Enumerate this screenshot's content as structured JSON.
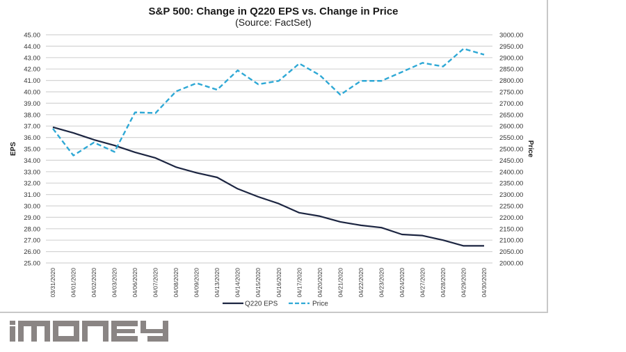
{
  "chart_data": {
    "type": "line",
    "title": "S&P 500: Change in Q220 EPS vs. Change in Price",
    "subtitle": "(Source: FactSet)",
    "xlabel": "",
    "ylabel": "EPS",
    "y2label": "Price",
    "ylim": [
      25,
      45
    ],
    "y2lim": [
      2000,
      3000
    ],
    "yticks": [
      "45.00",
      "44.00",
      "43.00",
      "42.00",
      "41.00",
      "40.00",
      "39.00",
      "38.00",
      "37.00",
      "36.00",
      "35.00",
      "34.00",
      "33.00",
      "32.00",
      "31.00",
      "30.00",
      "29.00",
      "28.00",
      "27.00",
      "26.00",
      "25.00"
    ],
    "y2ticks": [
      "3000.00",
      "2950.00",
      "2900.00",
      "2850.00",
      "2800.00",
      "2750.00",
      "2700.00",
      "2650.00",
      "2600.00",
      "2550.00",
      "2500.00",
      "2450.00",
      "2400.00",
      "2350.00",
      "2300.00",
      "2250.00",
      "2200.00",
      "2150.00",
      "2100.00",
      "2050.00",
      "2000.00"
    ],
    "grid": true,
    "legend_position": "bottom-center",
    "categories": [
      "03/31/2020",
      "04/01/2020",
      "04/02/2020",
      "04/03/2020",
      "04/06/2020",
      "04/07/2020",
      "04/08/2020",
      "04/09/2020",
      "04/13/2020",
      "04/14/2020",
      "04/15/2020",
      "04/16/2020",
      "04/17/2020",
      "04/20/2020",
      "04/21/2020",
      "04/22/2020",
      "04/23/2020",
      "04/24/2020",
      "04/27/2020",
      "04/28/2020",
      "04/29/2020",
      "04/30/2020"
    ],
    "series": [
      {
        "name": "Q220 EPS",
        "axis": "left",
        "style": "solid",
        "color": "#1c2541",
        "values": [
          36.9,
          36.4,
          35.8,
          35.3,
          34.7,
          34.2,
          33.4,
          32.9,
          32.5,
          31.5,
          30.8,
          30.2,
          29.4,
          29.1,
          28.6,
          28.3,
          28.1,
          27.5,
          27.4,
          27.0,
          26.5,
          26.5
        ]
      },
      {
        "name": "Price",
        "axis": "right",
        "style": "dashed",
        "color": "#2ea8d5",
        "values": [
          2589,
          2471,
          2528,
          2487,
          2660,
          2657,
          2752,
          2788,
          2759,
          2844,
          2783,
          2798,
          2874,
          2823,
          2737,
          2798,
          2798,
          2837,
          2877,
          2861,
          2939,
          2913
        ]
      }
    ]
  },
  "watermark": {
    "text": "iMONEY",
    "color": "#8a8584"
  }
}
